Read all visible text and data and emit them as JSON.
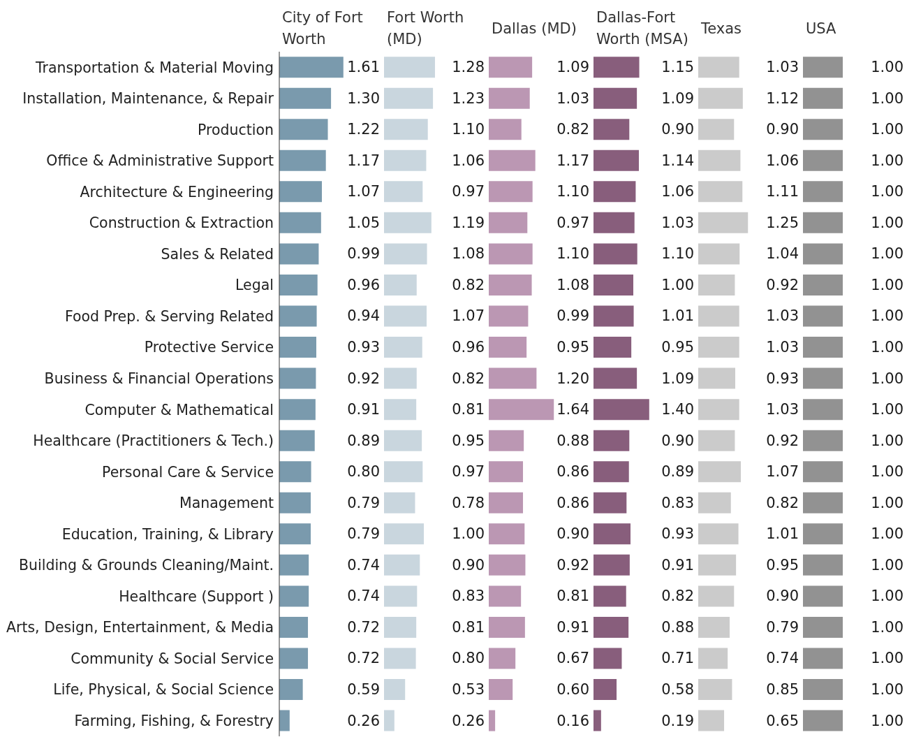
{
  "chart_data": [
    {
      "type": "bar",
      "orientation": "horizontal",
      "title": "City of Fort Worth",
      "categories": [
        "Transportation & Material Moving",
        "Installation, Maintenance, & Repair",
        "Production",
        "Office & Administrative Support",
        "Architecture & Engineering",
        "Construction & Extraction",
        "Sales & Related",
        "Legal",
        "Food Prep. & Serving Related",
        "Protective Service",
        "Business & Financial Operations",
        "Computer & Mathematical",
        "Healthcare (Practitioners & Tech.)",
        "Personal Care & Service",
        "Management",
        "Education, Training, & Library",
        "Building & Grounds Cleaning/Maint.",
        "Healthcare (Support )",
        "Arts, Design, Entertainment, & Media",
        "Community & Social Service",
        "Life, Physical, & Social Science",
        "Farming, Fishing, & Forestry"
      ],
      "values": [
        1.61,
        1.3,
        1.22,
        1.17,
        1.07,
        1.05,
        0.99,
        0.96,
        0.94,
        0.93,
        0.92,
        0.91,
        0.89,
        0.8,
        0.79,
        0.79,
        0.74,
        0.74,
        0.72,
        0.72,
        0.59,
        0.26
      ],
      "color": "#7a9aad",
      "value_labels": [
        "1.61",
        "1.30",
        "1.22",
        "1.17",
        "1.07",
        "1.05",
        "0.99",
        "0.96",
        "0.94",
        "0.93",
        "0.92",
        "0.91",
        "0.89",
        "0.80",
        "0.79",
        "0.79",
        "0.74",
        "0.74",
        "0.72",
        "0.72",
        "0.59",
        "0.26"
      ],
      "tick_labels": "y"
    },
    {
      "type": "bar",
      "orientation": "horizontal",
      "title": "Fort Worth (MD)",
      "values": [
        1.28,
        1.23,
        1.1,
        1.06,
        0.97,
        1.19,
        1.08,
        0.82,
        1.07,
        0.96,
        0.82,
        0.81,
        0.95,
        0.97,
        0.78,
        1.0,
        0.9,
        0.83,
        0.81,
        0.8,
        0.53,
        0.26
      ],
      "color": "#c9d6de",
      "value_labels": [
        "1.28",
        "1.23",
        "1.10",
        "1.06",
        "0.97",
        "1.19",
        "1.08",
        "0.82",
        "1.07",
        "0.96",
        "0.82",
        "0.81",
        "0.95",
        "0.97",
        "0.78",
        "1.00",
        "0.90",
        "0.83",
        "0.81",
        "0.80",
        "0.53",
        "0.26"
      ],
      "tick_labels": false
    },
    {
      "type": "bar",
      "orientation": "horizontal",
      "title": "Dallas (MD)",
      "values": [
        1.09,
        1.03,
        0.82,
        1.17,
        1.1,
        0.97,
        1.1,
        1.08,
        0.99,
        0.95,
        1.2,
        1.64,
        0.88,
        0.86,
        0.86,
        0.9,
        0.92,
        0.81,
        0.91,
        0.67,
        0.6,
        0.16
      ],
      "color": "#bb97b3",
      "value_labels": [
        "1.09",
        "1.03",
        "0.82",
        "1.17",
        "1.10",
        "0.97",
        "1.10",
        "1.08",
        "0.99",
        "0.95",
        "1.20",
        "1.64",
        "0.88",
        "0.86",
        "0.86",
        "0.90",
        "0.92",
        "0.81",
        "0.91",
        "0.67",
        "0.60",
        "0.16"
      ],
      "tick_labels": false
    },
    {
      "type": "bar",
      "orientation": "horizontal",
      "title": "Dallas-Fort Worth (MSA)",
      "values": [
        1.15,
        1.09,
        0.9,
        1.14,
        1.06,
        1.03,
        1.1,
        1.0,
        1.01,
        0.95,
        1.09,
        1.4,
        0.9,
        0.89,
        0.83,
        0.93,
        0.91,
        0.82,
        0.88,
        0.71,
        0.58,
        0.19
      ],
      "color": "#885e7c",
      "value_labels": [
        "1.15",
        "1.09",
        "0.90",
        "1.14",
        "1.06",
        "1.03",
        "1.10",
        "1.00",
        "1.01",
        "0.95",
        "1.09",
        "1.40",
        "0.90",
        "0.89",
        "0.83",
        "0.93",
        "0.91",
        "0.82",
        "0.88",
        "0.71",
        "0.58",
        "0.19"
      ],
      "tick_labels": false
    },
    {
      "type": "bar",
      "orientation": "horizontal",
      "title": "Texas",
      "values": [
        1.03,
        1.12,
        0.9,
        1.06,
        1.11,
        1.25,
        1.04,
        0.92,
        1.03,
        1.03,
        0.93,
        1.03,
        0.92,
        1.07,
        0.82,
        1.01,
        0.95,
        0.9,
        0.79,
        0.74,
        0.85,
        0.65
      ],
      "color": "#cbcbcb",
      "value_labels": [
        "1.03",
        "1.12",
        "0.90",
        "1.06",
        "1.11",
        "1.25",
        "1.04",
        "0.92",
        "1.03",
        "1.03",
        "0.93",
        "1.03",
        "0.92",
        "1.07",
        "0.82",
        "1.01",
        "0.95",
        "0.90",
        "0.79",
        "0.74",
        "0.85",
        "0.65"
      ],
      "tick_labels": false
    },
    {
      "type": "bar",
      "orientation": "horizontal",
      "title": "USA",
      "values": [
        1.0,
        1.0,
        1.0,
        1.0,
        1.0,
        1.0,
        1.0,
        1.0,
        1.0,
        1.0,
        1.0,
        1.0,
        1.0,
        1.0,
        1.0,
        1.0,
        1.0,
        1.0,
        1.0,
        1.0,
        1.0,
        1.0
      ],
      "color": "#929292",
      "value_labels": [
        "1.00",
        "1.00",
        "1.00",
        "1.00",
        "1.00",
        "1.00",
        "1.00",
        "1.00",
        "1.00",
        "1.00",
        "1.00",
        "1.00",
        "1.00",
        "1.00",
        "1.00",
        "1.00",
        "1.00",
        "1.00",
        "1.00",
        "1.00",
        "1.00",
        "1.00"
      ],
      "tick_labels": false
    }
  ]
}
